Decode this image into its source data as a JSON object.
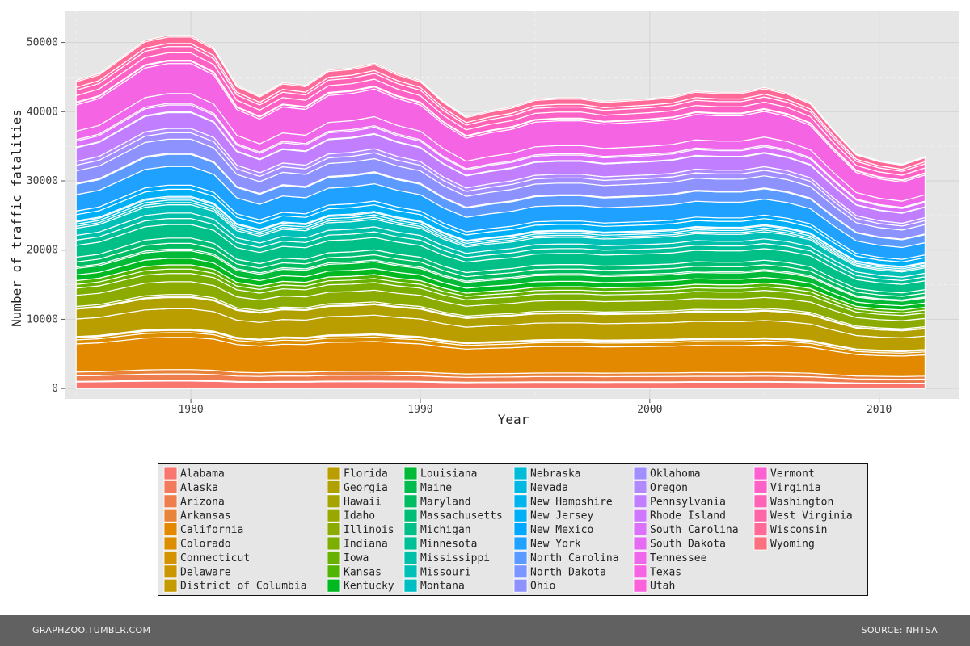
{
  "chart_data": {
    "type": "area",
    "stacked": true,
    "xlabel": "Year",
    "ylabel": "Number of traffic fatalities",
    "xlim": [
      1974.5,
      2013.5
    ],
    "ylim": [
      -1500,
      54500
    ],
    "x_ticks": [
      1980,
      1990,
      2000,
      2010
    ],
    "y_ticks": [
      0,
      10000,
      20000,
      30000,
      40000,
      50000
    ],
    "y_tick_labels": [
      "0",
      "10000",
      "20000",
      "30000",
      "40000",
      "50000"
    ],
    "grid": true,
    "legend_position": "bottom",
    "x": [
      1975,
      1976,
      1977,
      1978,
      1979,
      1980,
      1981,
      1982,
      1983,
      1984,
      1985,
      1986,
      1987,
      1988,
      1989,
      1990,
      1991,
      1992,
      1993,
      1994,
      1995,
      1996,
      1997,
      1998,
      1999,
      2000,
      2001,
      2002,
      2003,
      2004,
      2005,
      2006,
      2007,
      2008,
      2009,
      2010,
      2011,
      2012
    ],
    "totals": [
      44500,
      45500,
      47900,
      50300,
      51000,
      51000,
      49200,
      43800,
      42300,
      44200,
      43800,
      46000,
      46300,
      47000,
      45500,
      44500,
      41500,
      39300,
      40100,
      40700,
      41800,
      42000,
      42000,
      41500,
      41700,
      41900,
      42200,
      43000,
      42800,
      42800,
      43500,
      42700,
      41300,
      37400,
      33900,
      32900,
      32400,
      33500
    ],
    "series": [
      {
        "name": "Alabama",
        "color": "#F8766D",
        "base": 1000
      },
      {
        "name": "Alaska",
        "color": "#F47A5D",
        "base": 90
      },
      {
        "name": "Arizona",
        "color": "#EF7E4F",
        "base": 850
      },
      {
        "name": "Arkansas",
        "color": "#E98339",
        "base": 580
      },
      {
        "name": "California",
        "color": "#E38900",
        "base": 4300
      },
      {
        "name": "Colorado",
        "color": "#DC8E00",
        "base": 620
      },
      {
        "name": "Connecticut",
        "color": "#D49300",
        "base": 310
      },
      {
        "name": "Delaware",
        "color": "#CC9600",
        "base": 120
      },
      {
        "name": "District of Columbia",
        "color": "#C49A00",
        "base": 60
      },
      {
        "name": "Florida",
        "color": "#BA9E00",
        "base": 2700
      },
      {
        "name": "Georgia",
        "color": "#B0A100",
        "base": 1500
      },
      {
        "name": "Hawaii",
        "color": "#A5A400",
        "base": 140
      },
      {
        "name": "Idaho",
        "color": "#99A800",
        "base": 270
      },
      {
        "name": "Illinois",
        "color": "#8CAB00",
        "base": 1700
      },
      {
        "name": "Indiana",
        "color": "#7CAE00",
        "base": 1100
      },
      {
        "name": "Iowa",
        "color": "#69B100",
        "base": 590
      },
      {
        "name": "Kansas",
        "color": "#51B400",
        "base": 560
      },
      {
        "name": "Kentucky",
        "color": "#00B81F",
        "base": 870
      },
      {
        "name": "Louisiana",
        "color": "#00BA38",
        "base": 1000
      },
      {
        "name": "Maine",
        "color": "#00BB4E",
        "base": 230
      },
      {
        "name": "Maryland",
        "color": "#00BD62",
        "base": 760
      },
      {
        "name": "Massachusetts",
        "color": "#00BE75",
        "base": 720
      },
      {
        "name": "Michigan",
        "color": "#00BF87",
        "base": 1800
      },
      {
        "name": "Minnesota",
        "color": "#00C098",
        "base": 800
      },
      {
        "name": "Mississippi",
        "color": "#00C0A9",
        "base": 730
      },
      {
        "name": "Missouri",
        "color": "#00C0B8",
        "base": 1100
      },
      {
        "name": "Montana",
        "color": "#00BFC4",
        "base": 290
      },
      {
        "name": "Nebraska",
        "color": "#00BCD6",
        "base": 330
      },
      {
        "name": "Nevada",
        "color": "#00B9E3",
        "base": 330
      },
      {
        "name": "New Hampshire",
        "color": "#00B5EE",
        "base": 170
      },
      {
        "name": "New Jersey",
        "color": "#00B0F6",
        "base": 950
      },
      {
        "name": "New Mexico",
        "color": "#00A9FF",
        "base": 550
      },
      {
        "name": "New York",
        "color": "#1FA1FF",
        "base": 2500
      },
      {
        "name": "North Carolina",
        "color": "#5B9BFF",
        "base": 1600
      },
      {
        "name": "North Dakota",
        "color": "#7B96FF",
        "base": 140
      },
      {
        "name": "Ohio",
        "color": "#8E92FF",
        "base": 1900
      },
      {
        "name": "Oklahoma",
        "color": "#A18FFF",
        "base": 850
      },
      {
        "name": "Oregon",
        "color": "#B28AFF",
        "base": 580
      },
      {
        "name": "Pennsylvania",
        "color": "#C17FFF",
        "base": 2100
      },
      {
        "name": "Rhode Island",
        "color": "#CF78FF",
        "base": 100
      },
      {
        "name": "South Carolina",
        "color": "#DB72FB",
        "base": 920
      },
      {
        "name": "South Dakota",
        "color": "#E56CF2",
        "base": 220
      },
      {
        "name": "Tennessee",
        "color": "#EF67EB",
        "base": 1300
      },
      {
        "name": "Texas",
        "color": "#F564E3",
        "base": 4000
      },
      {
        "name": "Utah",
        "color": "#FA62DB",
        "base": 330
      },
      {
        "name": "Vermont",
        "color": "#FD61D1",
        "base": 110
      },
      {
        "name": "Virginia",
        "color": "#FF62C7",
        "base": 1000
      },
      {
        "name": "Washington",
        "color": "#FF63B6",
        "base": 820
      },
      {
        "name": "West Virginia",
        "color": "#FF66A8",
        "base": 430
      },
      {
        "name": "Wisconsin",
        "color": "#FF6A98",
        "base": 850
      },
      {
        "name": "Wyoming",
        "color": "#FC717F",
        "base": 200
      }
    ]
  },
  "footer": {
    "left": "GRAPHZOO.TUMBLR.COM",
    "right": "SOURCE: NHTSA"
  }
}
